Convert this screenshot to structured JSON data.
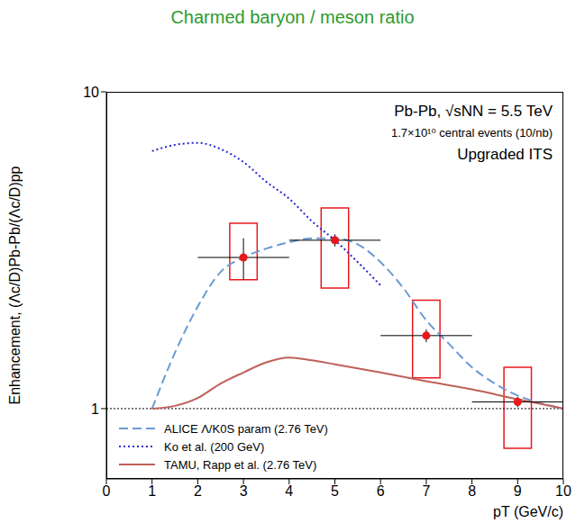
{
  "chart_data": {
    "type": "line",
    "title": "Charmed baryon / meson ratio",
    "x_label": "pT (GeV/c)",
    "y_label": "Enhancement, (Λc/D)Pb-Pb/(Λc/D)pp",
    "annotations": [
      "Pb-Pb, √sNN = 5.5 TeV",
      "1.7×10¹⁰ central events (10/nb)",
      "Upgraded ITS"
    ],
    "xlim": [
      0,
      10
    ],
    "xticks": [
      0,
      1,
      2,
      3,
      4,
      5,
      6,
      7,
      8,
      9,
      10
    ],
    "ylim": [
      0.6,
      10
    ],
    "yticks": [
      1,
      10
    ],
    "log": "y",
    "grid": false,
    "legend": "lower left",
    "reference_line": 1,
    "series": [
      {
        "name": "ALICE Λ/K0S param (2.76 TeV)",
        "color": "#6b9bd1",
        "line_style": "dashed",
        "x": [
          1,
          1.5,
          2,
          2.5,
          3,
          3.5,
          4,
          4.5,
          5,
          5.5,
          6,
          6.5,
          7,
          7.5,
          8,
          8.5,
          9,
          9.5,
          10
        ],
        "values": [
          1.0,
          1.5,
          2.1,
          2.7,
          3.0,
          3.2,
          3.35,
          3.45,
          3.45,
          3.3,
          2.9,
          2.4,
          1.9,
          1.6,
          1.35,
          1.2,
          1.1,
          1.04,
          1.0
        ]
      },
      {
        "name": "Ko et al. (200 GeV)",
        "color": "#2a2ad0",
        "line_style": "dotted",
        "x": [
          1,
          1.5,
          2,
          2.5,
          3,
          3.5,
          4,
          4.5,
          5,
          5.5,
          6
        ],
        "values": [
          6.5,
          6.8,
          6.9,
          6.6,
          6.0,
          5.2,
          4.6,
          3.9,
          3.4,
          2.9,
          2.45
        ]
      },
      {
        "name": "TAMU, Rapp et al. (2.76 TeV)",
        "color": "#c0605a",
        "line_style": "solid",
        "x": [
          1,
          1.5,
          2,
          2.5,
          3,
          3.5,
          4,
          4.5,
          5,
          6,
          7,
          8,
          9,
          10
        ],
        "values": [
          1.0,
          1.02,
          1.08,
          1.2,
          1.3,
          1.4,
          1.45,
          1.42,
          1.38,
          1.3,
          1.22,
          1.15,
          1.07,
          1.0
        ]
      }
    ],
    "measurements": {
      "type": "scatter",
      "color": "#e8181c",
      "marker": "circle",
      "x": [
        3,
        5,
        7,
        9
      ],
      "values": [
        3.0,
        3.4,
        1.7,
        1.05
      ],
      "x_error": [
        1,
        1,
        1,
        1
      ],
      "y_error": [
        0.45,
        0.15,
        0.08,
        0.04
      ],
      "syst_low": [
        2.55,
        2.4,
        1.25,
        0.75
      ],
      "syst_high": [
        3.85,
        4.3,
        2.2,
        1.35
      ]
    }
  }
}
